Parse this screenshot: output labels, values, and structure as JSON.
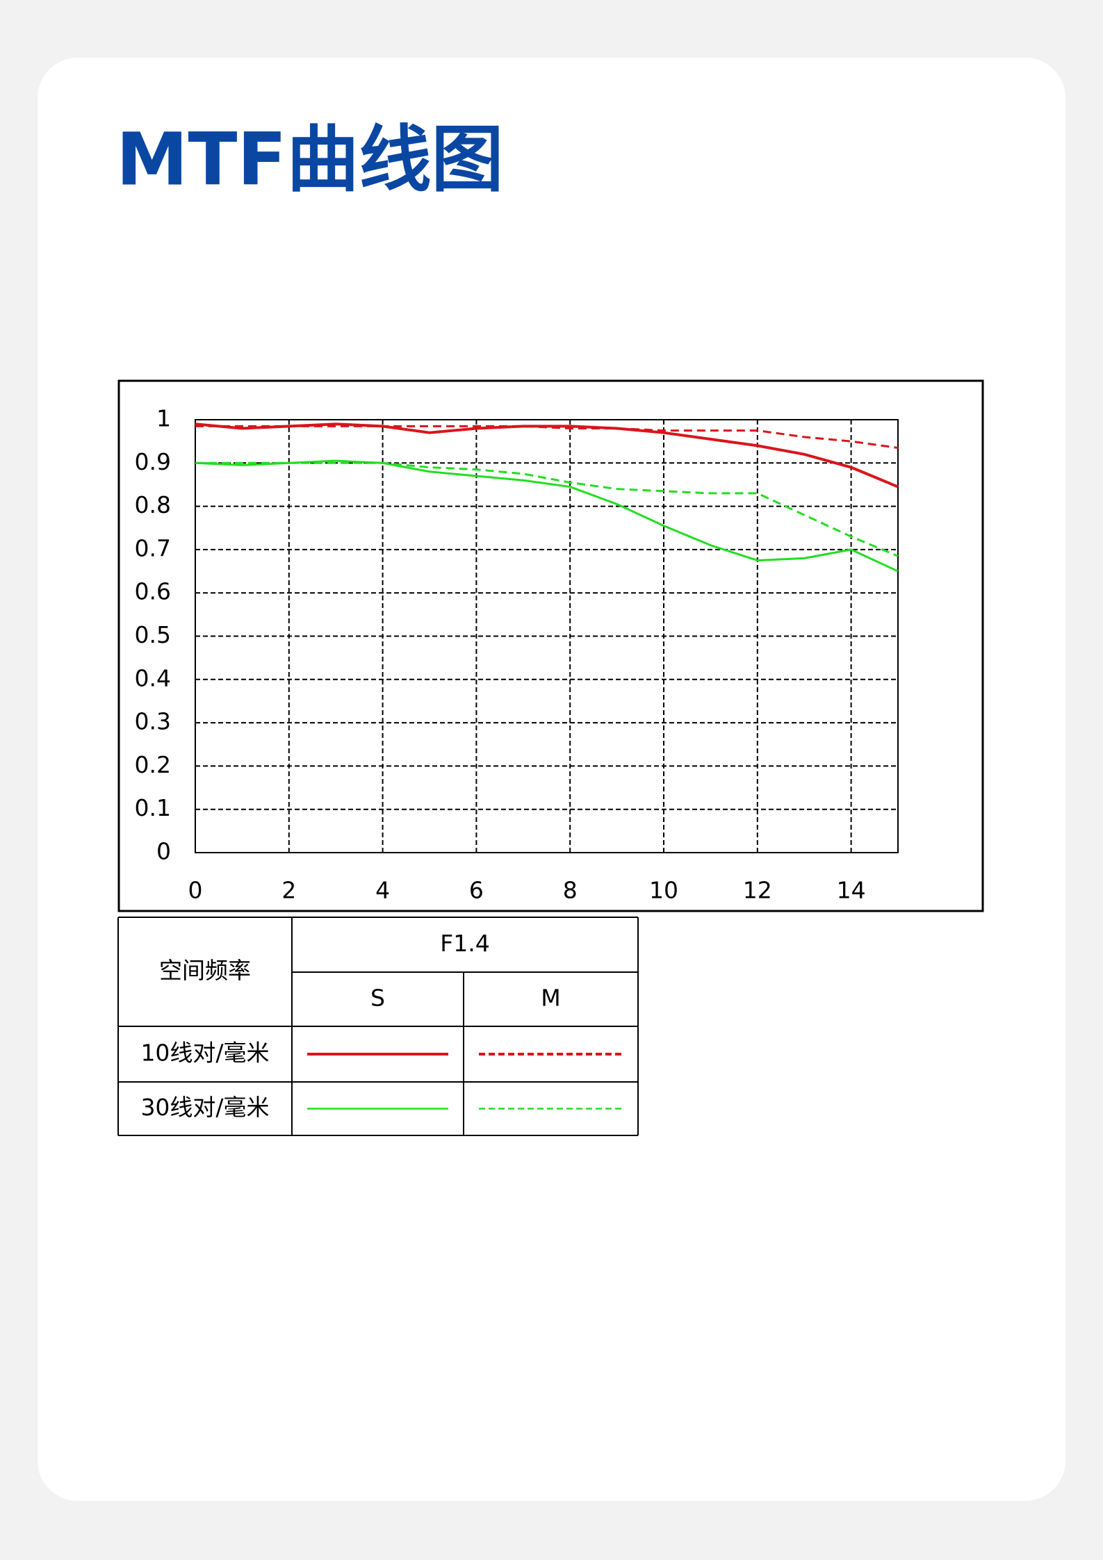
{
  "title": "MTF曲线图",
  "chart_data": {
    "type": "line",
    "x": [
      0,
      1,
      2,
      3,
      4,
      5,
      6,
      7,
      8,
      9,
      10,
      11,
      12,
      13,
      14,
      15
    ],
    "series": [
      {
        "color": "#d9151b",
        "style": "solid",
        "values": [
          0.99,
          0.98,
          0.985,
          0.99,
          0.985,
          0.97,
          0.98,
          0.985,
          0.985,
          0.98,
          0.97,
          0.955,
          0.94,
          0.92,
          0.89,
          0.845
        ]
      },
      {
        "color": "#d9151b",
        "style": "dashed",
        "values": [
          0.985,
          0.985,
          0.985,
          0.985,
          0.985,
          0.985,
          0.985,
          0.985,
          0.98,
          0.98,
          0.975,
          0.975,
          0.975,
          0.96,
          0.95,
          0.935
        ]
      },
      {
        "color": "#22dd22",
        "style": "solid",
        "values": [
          0.9,
          0.895,
          0.9,
          0.905,
          0.9,
          0.88,
          0.87,
          0.86,
          0.845,
          0.805,
          0.755,
          0.71,
          0.675,
          0.68,
          0.7,
          0.65
        ]
      },
      {
        "color": "#22dd22",
        "style": "dashed",
        "values": [
          0.9,
          0.9,
          0.9,
          0.9,
          0.9,
          0.89,
          0.885,
          0.875,
          0.855,
          0.84,
          0.835,
          0.83,
          0.83,
          0.78,
          0.73,
          0.685
        ]
      }
    ],
    "xlim": [
      0,
      15
    ],
    "xticks": [
      0,
      2,
      4,
      6,
      8,
      10,
      12,
      14
    ],
    "ylim": [
      0,
      1
    ],
    "yticks": [
      0,
      0.1,
      0.2,
      0.3,
      0.4,
      0.5,
      0.6,
      0.7,
      0.8,
      0.9,
      1
    ],
    "grid": true
  },
  "legend_table": {
    "header": "空间频率",
    "aperture": "F1.4",
    "columns": [
      "S",
      "M"
    ],
    "rows": [
      "10线对/毫米",
      "30线对/毫米"
    ]
  }
}
